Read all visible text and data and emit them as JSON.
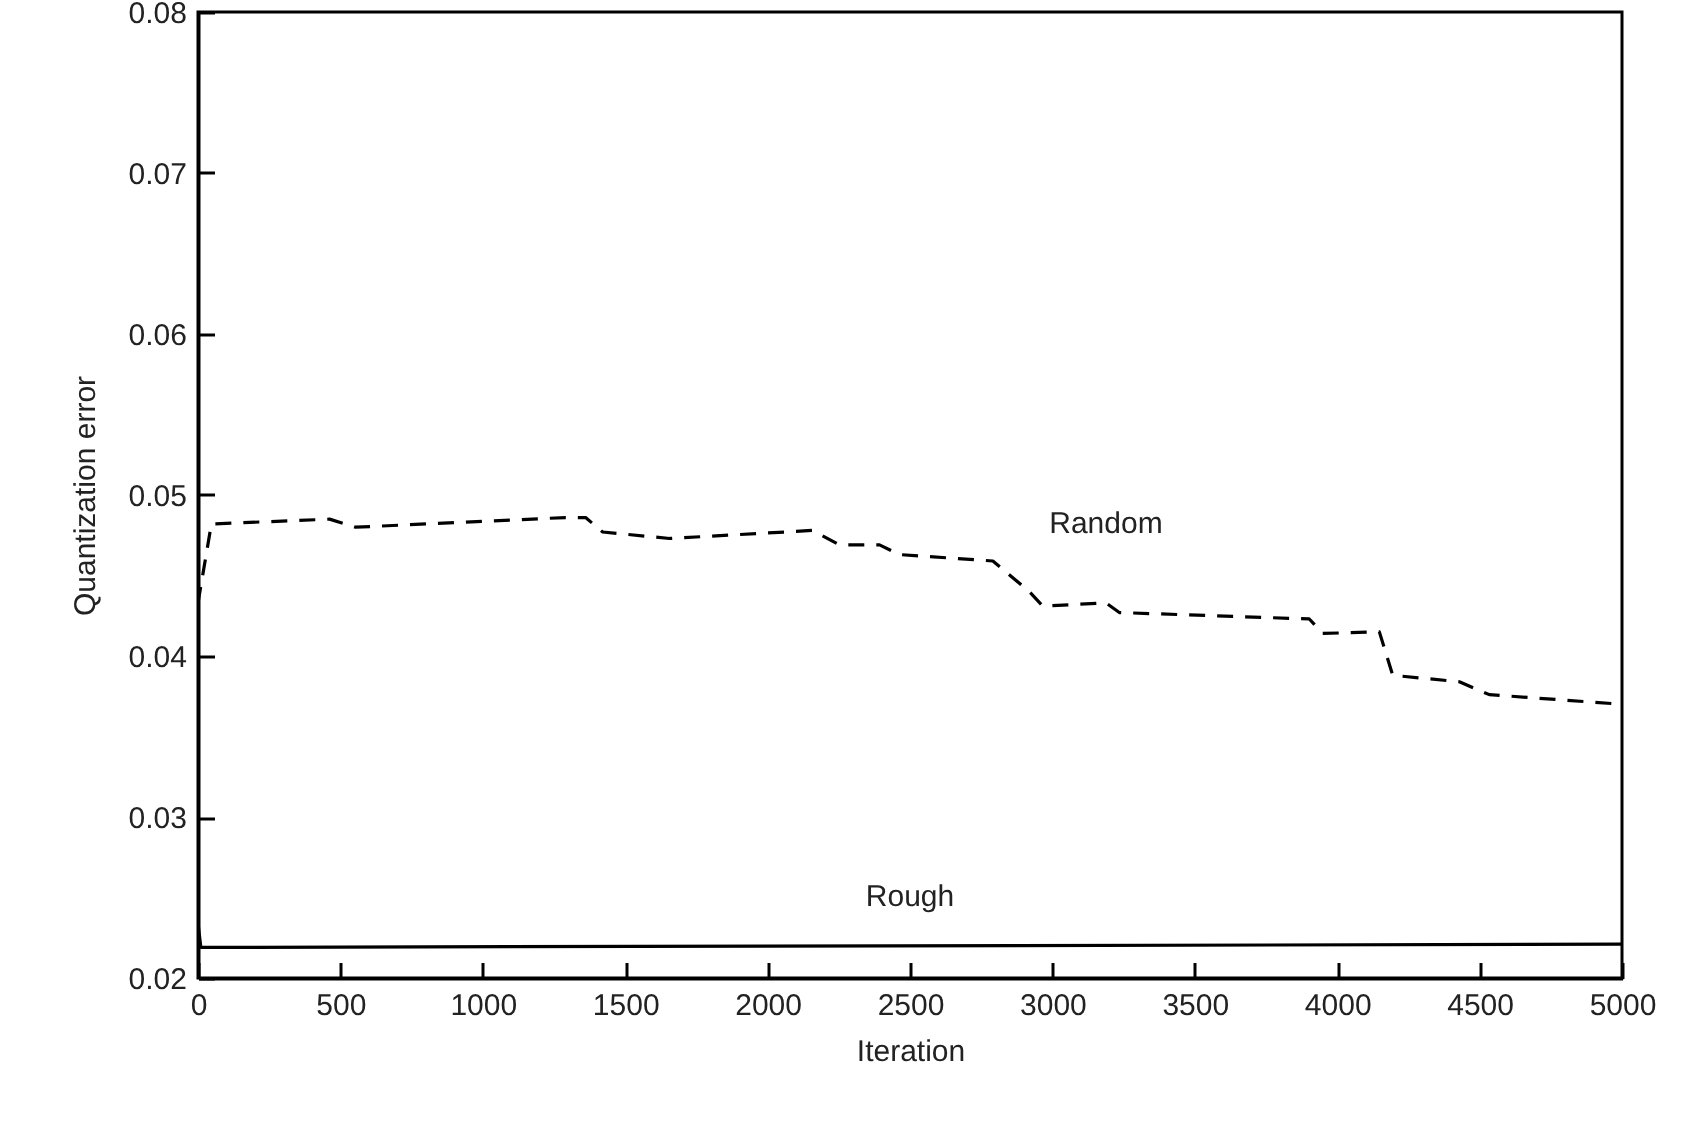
{
  "chart_data": {
    "type": "line",
    "xlabel": "Iteration",
    "ylabel": "Quantization error",
    "xlim": [
      0,
      5000
    ],
    "ylim": [
      0.02,
      0.08
    ],
    "xticks": [
      0,
      500,
      1000,
      1500,
      2000,
      2500,
      3000,
      3500,
      4000,
      4500,
      5000
    ],
    "yticks": [
      0.02,
      0.03,
      0.04,
      0.05,
      0.06,
      0.07,
      0.08
    ],
    "grid": false,
    "legend": false,
    "marker": "none",
    "series": [
      {
        "name": "Random",
        "color": "#000000",
        "line_style": "dashed",
        "x": [
          0,
          47,
          462,
          553,
          1290,
          1361,
          1421,
          1656,
          2158,
          2252,
          2393,
          2463,
          2791,
          2919,
          2966,
          3188,
          3235,
          3902,
          3949,
          4148,
          4195,
          4429,
          4534,
          5000
        ],
        "values": [
          0.0433,
          0.0482,
          0.0485,
          0.048,
          0.0486,
          0.0486,
          0.0477,
          0.0473,
          0.0478,
          0.0469,
          0.0469,
          0.0463,
          0.0459,
          0.044,
          0.0431,
          0.0433,
          0.0427,
          0.0423,
          0.0414,
          0.0415,
          0.0388,
          0.0384,
          0.0376,
          0.037
        ]
      },
      {
        "name": "Rough",
        "color": "#000000",
        "line_style": "solid",
        "x": [
          0,
          10,
          5000
        ],
        "values": [
          0.0234,
          0.0219,
          0.0221
        ]
      }
    ]
  }
}
